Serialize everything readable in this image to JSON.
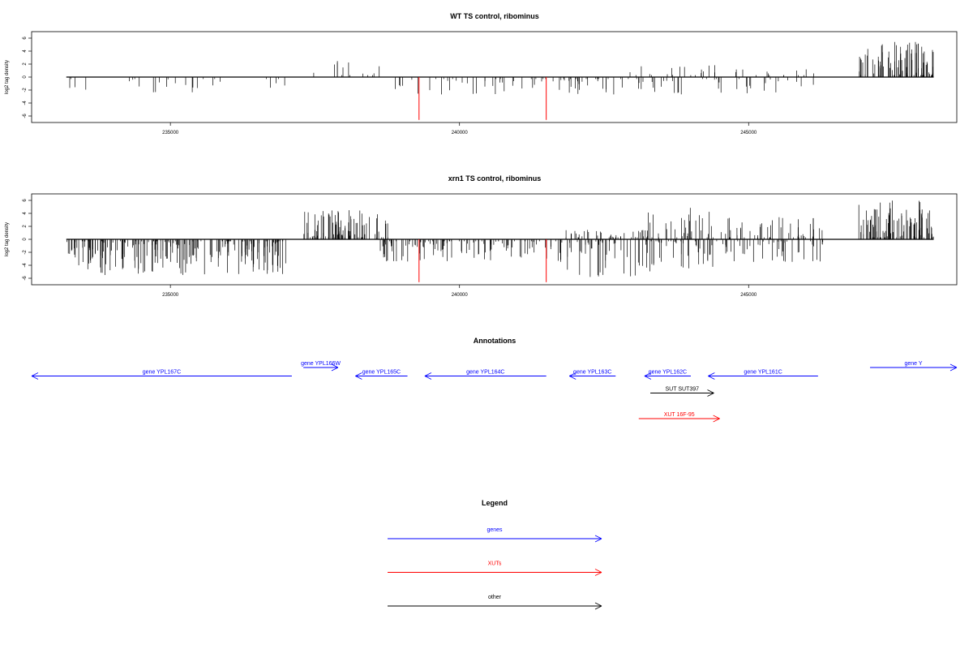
{
  "chart_data": [
    {
      "type": "bar",
      "title": "WT TS control, ribominus",
      "ylabel": "log2 tag density",
      "ylim": [
        -7,
        7
      ],
      "y_ticks": [
        -6,
        -4,
        -2,
        0,
        2,
        4,
        6
      ],
      "xlim": [
        232600,
        248600
      ],
      "x_ticks": [
        235000,
        240000,
        245000
      ],
      "x_tick_labels": [
        "235000",
        "240000",
        "245000"
      ],
      "grid": false,
      "series_color": "#000000",
      "highlight_color": "#ff0000",
      "highlights": [
        {
          "x": 239300,
          "y": -6.6
        },
        {
          "x": 241500,
          "y": -6.6
        }
      ],
      "segments": [
        {
          "start": 233200,
          "end": 237000,
          "density": 0.1,
          "min": -2.5,
          "max": 0
        },
        {
          "start": 237300,
          "end": 238800,
          "density": 0.12,
          "min": 0,
          "max": 2.8
        },
        {
          "start": 238600,
          "end": 241800,
          "density": 0.18,
          "min": -3,
          "max": 0
        },
        {
          "start": 241800,
          "end": 242800,
          "density": 0.35,
          "min": -3,
          "max": 0
        },
        {
          "start": 242800,
          "end": 244500,
          "density": 0.35,
          "min": -3,
          "max": 2.5
        },
        {
          "start": 244500,
          "end": 246200,
          "density": 0.25,
          "min": -2.5,
          "max": 2
        },
        {
          "start": 246900,
          "end": 248200,
          "density": 1.0,
          "min": 0,
          "max": 5.5
        }
      ]
    },
    {
      "type": "bar",
      "title": "xrn1 TS control, ribominus",
      "ylabel": "log2 tag density",
      "ylim": [
        -7,
        7
      ],
      "y_ticks": [
        -6,
        -4,
        -2,
        0,
        2,
        4,
        6
      ],
      "xlim": [
        232600,
        248600
      ],
      "x_ticks": [
        235000,
        240000,
        245000
      ],
      "x_tick_labels": [
        "235000",
        "240000",
        "245000"
      ],
      "grid": false,
      "series_color": "#000000",
      "highlight_color": "#ff0000",
      "highlights": [
        {
          "x": 239300,
          "y": -6.6
        },
        {
          "x": 241500,
          "y": -6.6
        }
      ],
      "segments": [
        {
          "start": 233200,
          "end": 237000,
          "density": 0.8,
          "min": -5.5,
          "max": 0
        },
        {
          "start": 237300,
          "end": 238800,
          "density": 0.8,
          "min": 0,
          "max": 4.5
        },
        {
          "start": 238600,
          "end": 241800,
          "density": 0.5,
          "min": -3.5,
          "max": 0
        },
        {
          "start": 241800,
          "end": 243300,
          "density": 0.8,
          "min": -6.0,
          "max": 1.5
        },
        {
          "start": 243200,
          "end": 244400,
          "density": 0.9,
          "min": -4.5,
          "max": 5.0
        },
        {
          "start": 244400,
          "end": 246300,
          "density": 0.7,
          "min": -3.5,
          "max": 3.5
        },
        {
          "start": 246900,
          "end": 248200,
          "density": 1.0,
          "min": 0,
          "max": 6.0
        }
      ]
    }
  ],
  "annotations": {
    "title": "Annotations",
    "items": [
      {
        "label": "gene YPL167C",
        "start": 237100,
        "end": 232600,
        "row": 1,
        "color": "#0000ff"
      },
      {
        "label": "gene YPL166W",
        "start": 237300,
        "end": 237900,
        "row": 0,
        "color": "#0000ff"
      },
      {
        "label": "gene YPL165C",
        "start": 239100,
        "end": 238200,
        "row": 1,
        "color": "#0000ff"
      },
      {
        "label": "gene YPL164C",
        "start": 241500,
        "end": 239400,
        "row": 1,
        "color": "#0000ff"
      },
      {
        "label": "gene YPL163C",
        "start": 242700,
        "end": 241900,
        "row": 1,
        "color": "#0000ff"
      },
      {
        "label": "gene YPL162C",
        "start": 244000,
        "end": 243200,
        "row": 1,
        "color": "#0000ff"
      },
      {
        "label": "gene YPL161C",
        "start": 246200,
        "end": 244300,
        "row": 1,
        "color": "#0000ff"
      },
      {
        "label": "gene Y",
        "start": 247100,
        "end": 248600,
        "row": 0,
        "color": "#0000ff"
      },
      {
        "label": "SUT SUT397",
        "start": 243300,
        "end": 244400,
        "row": 3,
        "color": "#000000"
      },
      {
        "label": "XUT 16F-95",
        "start": 243100,
        "end": 244500,
        "row": 6,
        "color": "#ff0000"
      }
    ]
  },
  "legend": {
    "title": "Legend",
    "items": [
      {
        "label": "genes",
        "color": "#0000ff"
      },
      {
        "label": "XUTs",
        "color": "#ff0000"
      },
      {
        "label": "other",
        "color": "#000000"
      }
    ]
  }
}
